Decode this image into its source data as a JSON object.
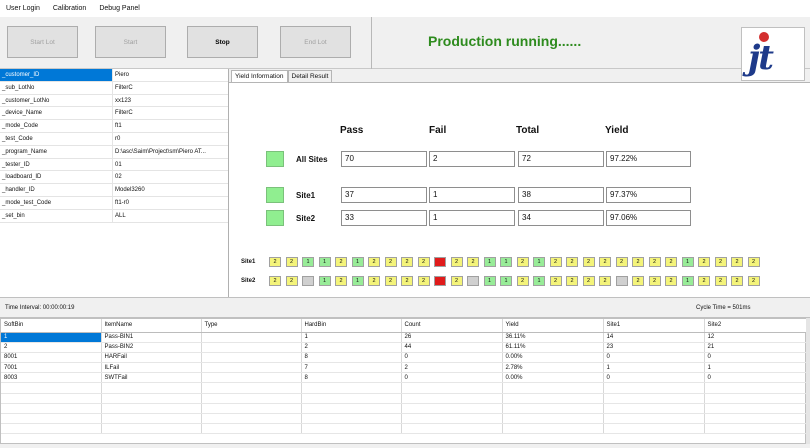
{
  "menu": [
    "User Login",
    "Calibration",
    "Debug Panel"
  ],
  "toolbar": {
    "buttons": [
      {
        "label": "Start Lot",
        "enabled": false
      },
      {
        "label": "Start",
        "enabled": false
      },
      {
        "label": "Stop",
        "enabled": true
      },
      {
        "label": "End Lot",
        "enabled": false
      }
    ],
    "status": "Production running......",
    "status_color": "#2e8b1e",
    "logo_text": "jt"
  },
  "properties": [
    {
      "key": "_customer_ID",
      "value": "Piero"
    },
    {
      "key": "_sub_LotNo",
      "value": "FilterC"
    },
    {
      "key": "_customer_LotNo",
      "value": "xx123"
    },
    {
      "key": "_device_Name",
      "value": "FilterC"
    },
    {
      "key": "_mode_Code",
      "value": "ft1"
    },
    {
      "key": "_test_Code",
      "value": "r0"
    },
    {
      "key": "_program_Name",
      "value": "D:\\asc\\Saim\\Project\\sm\\Piero AT..."
    },
    {
      "key": "_tester_ID",
      "value": "01"
    },
    {
      "key": "_loadboard_ID",
      "value": "02"
    },
    {
      "key": "_handler_ID",
      "value": "Model3260"
    },
    {
      "key": "_mode_test_Code",
      "value": "ft1-r0"
    },
    {
      "key": "_set_bin",
      "value": "ALL"
    }
  ],
  "tabs": [
    "Yield Information",
    "Detail Result"
  ],
  "yield": {
    "headers": [
      "Pass",
      "Fail",
      "Total",
      "Yield"
    ],
    "rows": [
      {
        "label": "All Sites",
        "pass": "70",
        "fail": "2",
        "total": "72",
        "yield": "97.22%"
      },
      {
        "label": "Site1",
        "pass": "37",
        "fail": "1",
        "total": "38",
        "yield": "97.37%"
      },
      {
        "label": "Site2",
        "pass": "33",
        "fail": "1",
        "total": "34",
        "yield": "97.06%"
      }
    ]
  },
  "bin_map": {
    "colors": {
      "yellow": "#f4f47a",
      "green": "#98ec98",
      "red": "#e01b1b",
      "gray": "#d0d0d0"
    },
    "sites": [
      {
        "label": "Site1",
        "cells": [
          {
            "v": "2",
            "c": "yellow"
          },
          {
            "v": "2",
            "c": "yellow"
          },
          {
            "v": "1",
            "c": "green"
          },
          {
            "v": "1",
            "c": "green"
          },
          {
            "v": "2",
            "c": "yellow"
          },
          {
            "v": "1",
            "c": "green"
          },
          {
            "v": "2",
            "c": "yellow"
          },
          {
            "v": "2",
            "c": "yellow"
          },
          {
            "v": "2",
            "c": "yellow"
          },
          {
            "v": "2",
            "c": "yellow"
          },
          {
            "v": "",
            "c": "red"
          },
          {
            "v": "2",
            "c": "yellow"
          },
          {
            "v": "2",
            "c": "yellow"
          },
          {
            "v": "1",
            "c": "green"
          },
          {
            "v": "1",
            "c": "green"
          },
          {
            "v": "2",
            "c": "yellow"
          },
          {
            "v": "1",
            "c": "green"
          },
          {
            "v": "2",
            "c": "yellow"
          },
          {
            "v": "2",
            "c": "yellow"
          },
          {
            "v": "2",
            "c": "yellow"
          },
          {
            "v": "2",
            "c": "yellow"
          },
          {
            "v": "2",
            "c": "yellow"
          },
          {
            "v": "2",
            "c": "yellow"
          },
          {
            "v": "2",
            "c": "yellow"
          },
          {
            "v": "2",
            "c": "yellow"
          },
          {
            "v": "1",
            "c": "green"
          },
          {
            "v": "2",
            "c": "yellow"
          },
          {
            "v": "2",
            "c": "yellow"
          },
          {
            "v": "2",
            "c": "yellow"
          },
          {
            "v": "2",
            "c": "yellow"
          }
        ]
      },
      {
        "label": "Site2",
        "cells": [
          {
            "v": "2",
            "c": "yellow"
          },
          {
            "v": "2",
            "c": "yellow"
          },
          {
            "v": "",
            "c": "gray"
          },
          {
            "v": "1",
            "c": "green"
          },
          {
            "v": "2",
            "c": "yellow"
          },
          {
            "v": "1",
            "c": "green"
          },
          {
            "v": "2",
            "c": "yellow"
          },
          {
            "v": "2",
            "c": "yellow"
          },
          {
            "v": "2",
            "c": "yellow"
          },
          {
            "v": "2",
            "c": "yellow"
          },
          {
            "v": "",
            "c": "red"
          },
          {
            "v": "2",
            "c": "yellow"
          },
          {
            "v": "",
            "c": "gray"
          },
          {
            "v": "1",
            "c": "green"
          },
          {
            "v": "1",
            "c": "green"
          },
          {
            "v": "2",
            "c": "yellow"
          },
          {
            "v": "1",
            "c": "green"
          },
          {
            "v": "2",
            "c": "yellow"
          },
          {
            "v": "2",
            "c": "yellow"
          },
          {
            "v": "2",
            "c": "yellow"
          },
          {
            "v": "2",
            "c": "yellow"
          },
          {
            "v": "",
            "c": "gray"
          },
          {
            "v": "2",
            "c": "yellow"
          },
          {
            "v": "2",
            "c": "yellow"
          },
          {
            "v": "2",
            "c": "yellow"
          },
          {
            "v": "1",
            "c": "green"
          },
          {
            "v": "2",
            "c": "yellow"
          },
          {
            "v": "2",
            "c": "yellow"
          },
          {
            "v": "2",
            "c": "yellow"
          },
          {
            "v": "2",
            "c": "yellow"
          }
        ]
      }
    ]
  },
  "timing": {
    "interval": "Time Interval: 00:00:00:19",
    "cycle": "Cycle Time = 501ms"
  },
  "bins_table": {
    "columns": [
      "SoftBin",
      "ItemName",
      "Type",
      "HardBin",
      "Count",
      "Yield",
      "Site1",
      "Site2"
    ],
    "rows": [
      [
        "1",
        "Pass-BIN1",
        "",
        "1",
        "26",
        "36.11%",
        "14",
        "12"
      ],
      [
        "2",
        "Pass-BIN2",
        "",
        "2",
        "44",
        "61.11%",
        "23",
        "21"
      ],
      [
        "8001",
        "HARFail",
        "",
        "8",
        "0",
        "0.00%",
        "0",
        "0"
      ],
      [
        "7001",
        "ILFail",
        "",
        "7",
        "2",
        "2.78%",
        "1",
        "1"
      ],
      [
        "8003",
        "SWTFail",
        "",
        "8",
        "0",
        "0.00%",
        "0",
        "0"
      ]
    ]
  }
}
